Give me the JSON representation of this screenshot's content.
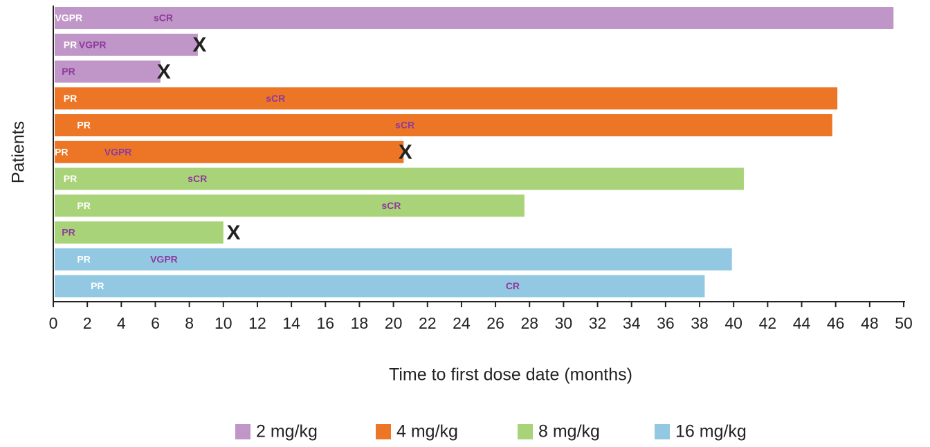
{
  "chart_data": {
    "type": "swimmer",
    "x_label": "Time to first dose date (months)",
    "y_label": "Patients",
    "xlim": [
      0,
      50
    ],
    "xticks": [
      0,
      2,
      4,
      6,
      8,
      10,
      12,
      14,
      16,
      18,
      20,
      22,
      24,
      26,
      28,
      30,
      32,
      34,
      36,
      38,
      40,
      42,
      44,
      46,
      48,
      50
    ],
    "discontinued_marker": "X",
    "series": [
      {
        "name": "2 mg/kg",
        "color": "#c095c7",
        "patients": [
          {
            "duration": 49.4,
            "discontinued": null,
            "events": [
              {
                "label": "VGPR",
                "value": 0.1,
                "color": "#ffffff"
              },
              {
                "label": "sCR",
                "value": 5.9,
                "color": "#8e3a9d"
              }
            ]
          },
          {
            "duration": 8.5,
            "discontinued": 8.6,
            "events": [
              {
                "label": "PR",
                "value": 0.6,
                "color": "#ffffff"
              },
              {
                "label": "VGPR",
                "value": 1.5,
                "color": "#8e3a9d"
              }
            ]
          },
          {
            "duration": 6.3,
            "discontinued": 6.5,
            "events": [
              {
                "label": "PR",
                "value": 0.5,
                "color": "#8e3a9d"
              }
            ]
          }
        ]
      },
      {
        "name": "4 mg/kg",
        "color": "#ec7626",
        "patients": [
          {
            "duration": 46.1,
            "discontinued": null,
            "events": [
              {
                "label": "PR",
                "value": 0.6,
                "color": "#ffffff"
              },
              {
                "label": "sCR",
                "value": 12.5,
                "color": "#8e3a9d"
              }
            ]
          },
          {
            "duration": 45.8,
            "discontinued": null,
            "events": [
              {
                "label": "PR",
                "value": 1.4,
                "color": "#ffffff"
              },
              {
                "label": "sCR",
                "value": 20.1,
                "color": "#8e3a9d"
              }
            ]
          },
          {
            "duration": 20.6,
            "discontinued": 20.7,
            "events": [
              {
                "label": "PR",
                "value": 0.0,
                "color": "#ffffff"
              },
              {
                "label": "VGPR",
                "value": 3.0,
                "color": "#8e3a9d"
              }
            ]
          }
        ]
      },
      {
        "name": "8 mg/kg",
        "color": "#a9d378",
        "patients": [
          {
            "duration": 40.6,
            "discontinued": null,
            "events": [
              {
                "label": "PR",
                "value": 0.6,
                "color": "#ffffff"
              },
              {
                "label": "sCR",
                "value": 7.9,
                "color": "#8e3a9d"
              }
            ]
          },
          {
            "duration": 27.7,
            "discontinued": null,
            "events": [
              {
                "label": "PR",
                "value": 1.4,
                "color": "#ffffff"
              },
              {
                "label": "sCR",
                "value": 19.3,
                "color": "#8e3a9d"
              }
            ]
          },
          {
            "duration": 10.0,
            "discontinued": 10.6,
            "events": [
              {
                "label": "PR",
                "value": 0.5,
                "color": "#8e3a9d"
              }
            ]
          }
        ]
      },
      {
        "name": "16 mg/kg",
        "color": "#92c8e2",
        "patients": [
          {
            "duration": 39.9,
            "discontinued": null,
            "events": [
              {
                "label": "PR",
                "value": 1.4,
                "color": "#ffffff"
              },
              {
                "label": "VGPR",
                "value": 5.7,
                "color": "#8e3a9d"
              }
            ]
          },
          {
            "duration": 38.3,
            "discontinued": null,
            "events": [
              {
                "label": "PR",
                "value": 2.2,
                "color": "#ffffff"
              },
              {
                "label": "CR",
                "value": 26.6,
                "color": "#8e3a9d"
              }
            ]
          }
        ]
      }
    ]
  }
}
